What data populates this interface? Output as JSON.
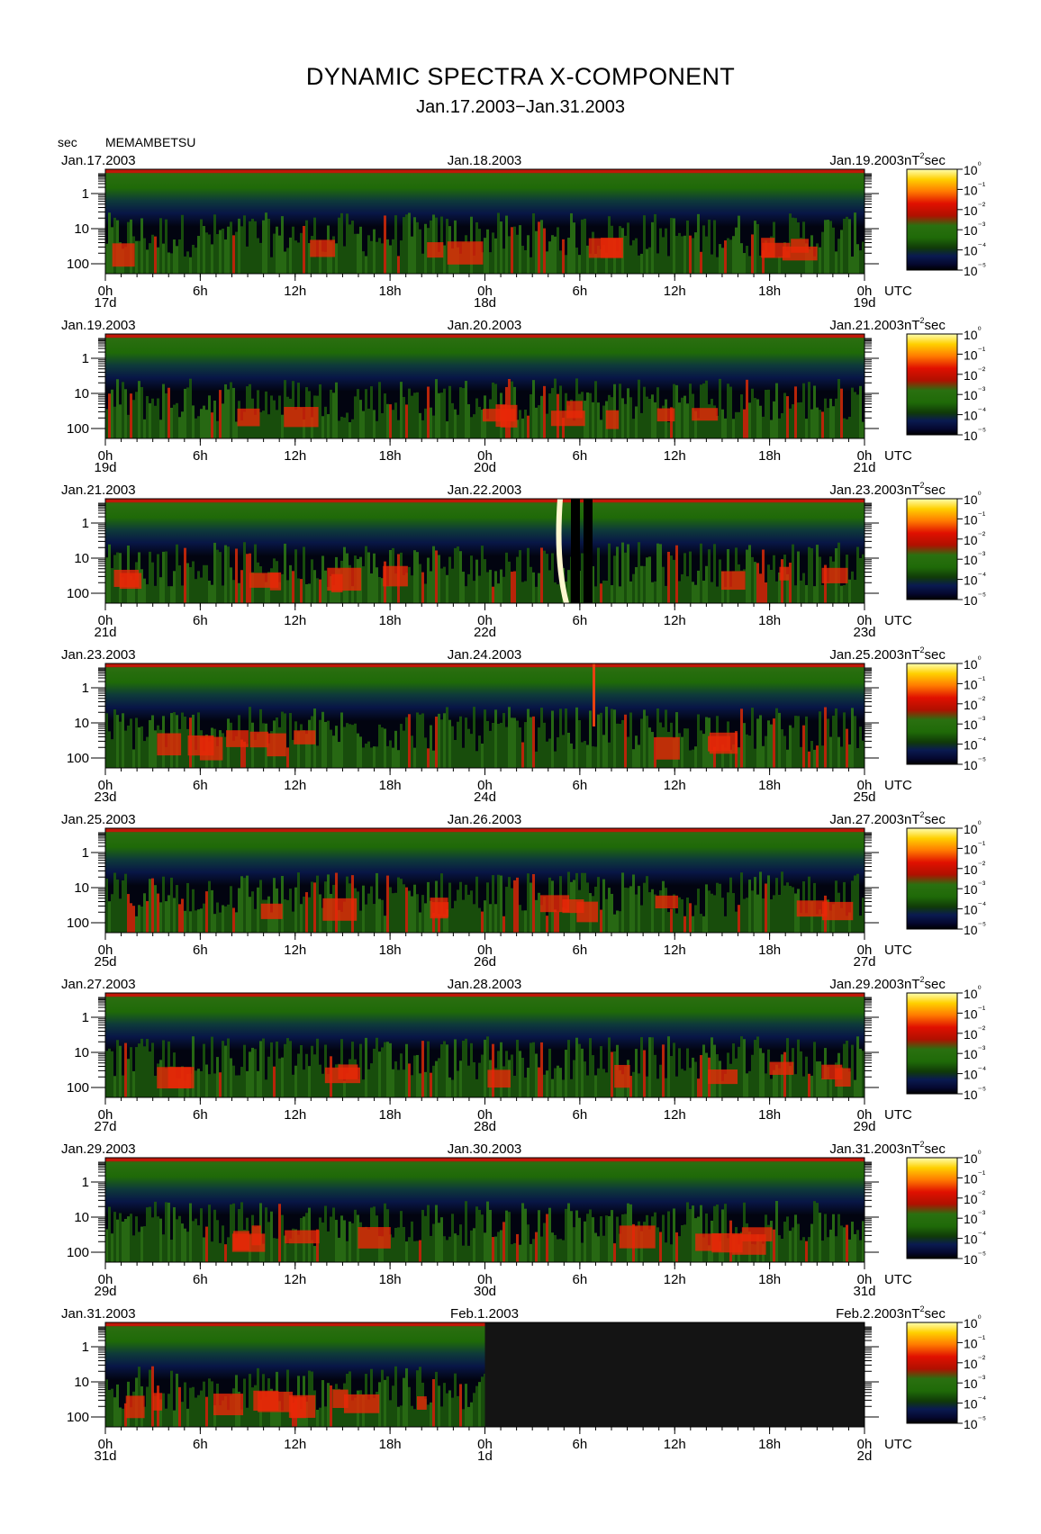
{
  "page": {
    "title": "DYNAMIC SPECTRA X-COMPONENT",
    "subtitle": "Jan.17.2003−Jan.31.2003",
    "station": "MEMAMBETSU",
    "yunit": "sec",
    "xunit": "UTC",
    "cbar_unit_base": "nT",
    "cbar_unit_exp": "2",
    "cbar_unit_tail": "sec"
  },
  "chart_data": {
    "type": "heatmap",
    "title": "DYNAMIC SPECTRA X-COMPONENT",
    "subtitle": "Jan.17.2003−Jan.31.2003",
    "ylabel": "sec",
    "y_scale": "log",
    "y_ticks": [
      "1",
      "10",
      "100"
    ],
    "x_ticks": [
      "0h",
      "6h",
      "12h",
      "18h",
      "0h",
      "6h",
      "12h",
      "18h",
      "0h"
    ],
    "colorbar": {
      "unit": "nT²sec",
      "ticks": [
        "10⁰",
        "10⁻¹",
        "10⁻²",
        "10⁻³",
        "10⁻⁴",
        "10⁻⁵"
      ],
      "colors": [
        "#ffffb0",
        "#ffd000",
        "#ff7a00",
        "#e01000",
        "#b01000",
        "#2a7010",
        "#1f6a08",
        "#103a08",
        "#0a1a50",
        "#050830",
        "#000000"
      ]
    },
    "panels": [
      {
        "start_date": "Jan.17.2003",
        "mid_date": "Jan.18.2003",
        "end_date": "Jan.19.2003",
        "day_labels": [
          "17d",
          "18d",
          "19d"
        ]
      },
      {
        "start_date": "Jan.19.2003",
        "mid_date": "Jan.20.2003",
        "end_date": "Jan.21.2003",
        "day_labels": [
          "19d",
          "20d",
          "21d"
        ]
      },
      {
        "start_date": "Jan.21.2003",
        "mid_date": "Jan.22.2003",
        "end_date": "Jan.23.2003",
        "day_labels": [
          "21d",
          "22d",
          "23d"
        ]
      },
      {
        "start_date": "Jan.23.2003",
        "mid_date": "Jan.24.2003",
        "end_date": "Jan.25.2003",
        "day_labels": [
          "23d",
          "24d",
          "25d"
        ]
      },
      {
        "start_date": "Jan.25.2003",
        "mid_date": "Jan.26.2003",
        "end_date": "Jan.27.2003",
        "day_labels": [
          "25d",
          "26d",
          "27d"
        ]
      },
      {
        "start_date": "Jan.27.2003",
        "mid_date": "Jan.28.2003",
        "end_date": "Jan.29.2003",
        "day_labels": [
          "27d",
          "28d",
          "29d"
        ]
      },
      {
        "start_date": "Jan.29.2003",
        "mid_date": "Jan.30.2003",
        "end_date": "Jan.31.2003",
        "day_labels": [
          "29d",
          "30d",
          "31d"
        ]
      },
      {
        "start_date": "Jan.31.2003",
        "mid_date": "Feb.1.2003",
        "end_date": "Feb.2.2003",
        "day_labels": [
          "31d",
          "1d",
          "2d"
        ]
      }
    ]
  }
}
